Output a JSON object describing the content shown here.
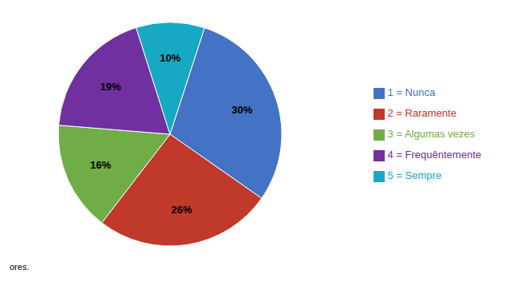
{
  "chart_data": {
    "type": "pie",
    "categories": [
      "1 = Nunca",
      "2 = Raramente",
      "3 = Algumas vezes",
      "4 = Frequêntemente",
      "5 = Sempre"
    ],
    "values": [
      30,
      26,
      16,
      19,
      10
    ],
    "value_labels": [
      "30%",
      "26%",
      "16%",
      "19%",
      "10%"
    ],
    "colors": [
      "#4472C4",
      "#C0392B",
      "#70AD47",
      "#7030A0",
      "#17A8C4"
    ],
    "data_labels": true,
    "legend": "right",
    "annotations": [
      "ores."
    ]
  }
}
